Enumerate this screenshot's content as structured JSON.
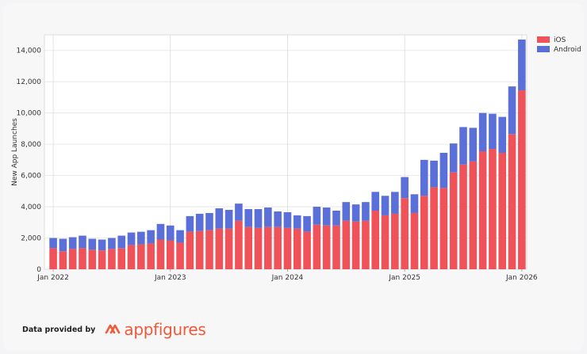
{
  "chart_data": {
    "type": "bar",
    "stacked": true,
    "ylabel": "New App Launches",
    "xlabel": "",
    "ylim": [
      0,
      15000
    ],
    "yticks": [
      0,
      2000,
      4000,
      6000,
      8000,
      10000,
      12000,
      14000
    ],
    "ytick_labels": [
      "0",
      "2,000",
      "4,000",
      "6,000",
      "8,000",
      "10,000",
      "12,000",
      "14,000"
    ],
    "xtick_labels": [
      "Jan 2022",
      "Jan 2023",
      "Jan 2024",
      "Jan 2025",
      "Jan 2026"
    ],
    "grid": true,
    "legend_position": "top-right",
    "categories": [
      "2022-01",
      "2022-02",
      "2022-03",
      "2022-04",
      "2022-05",
      "2022-06",
      "2022-07",
      "2022-08",
      "2022-09",
      "2022-10",
      "2022-11",
      "2022-12",
      "2023-01",
      "2023-02",
      "2023-03",
      "2023-04",
      "2023-05",
      "2023-06",
      "2023-07",
      "2023-08",
      "2023-09",
      "2023-10",
      "2023-11",
      "2023-12",
      "2024-01",
      "2024-02",
      "2024-03",
      "2024-04",
      "2024-05",
      "2024-06",
      "2024-07",
      "2024-08",
      "2024-09",
      "2024-10",
      "2024-11",
      "2024-12",
      "2025-01",
      "2025-02",
      "2025-03",
      "2025-04",
      "2025-05",
      "2025-06",
      "2025-07",
      "2025-08",
      "2025-09",
      "2025-10",
      "2025-11",
      "2025-12",
      "2026-01"
    ],
    "series": [
      {
        "name": "iOS",
        "color": "#ef5258",
        "values": [
          1350,
          1150,
          1300,
          1350,
          1250,
          1200,
          1300,
          1350,
          1550,
          1600,
          1650,
          1900,
          1850,
          1700,
          2400,
          2450,
          2500,
          2600,
          2600,
          3100,
          2700,
          2650,
          2700,
          2700,
          2650,
          2600,
          2400,
          2850,
          2800,
          2800,
          3100,
          3050,
          3100,
          3750,
          3450,
          3550,
          4550,
          3600,
          4700,
          5250,
          5200,
          6200,
          6700,
          6900,
          7550,
          7700,
          7450,
          8650,
          11450
        ]
      },
      {
        "name": "Android",
        "color": "#5b6fd8",
        "values": [
          650,
          800,
          750,
          800,
          700,
          700,
          700,
          800,
          800,
          800,
          850,
          1000,
          950,
          800,
          1000,
          1100,
          1100,
          1300,
          1200,
          1100,
          1150,
          1200,
          1250,
          1000,
          1000,
          850,
          1000,
          1150,
          1150,
          950,
          1200,
          1100,
          1200,
          1200,
          1250,
          1400,
          1350,
          1200,
          2300,
          1700,
          2250,
          1850,
          2400,
          2150,
          2450,
          2250,
          2300,
          3050,
          3250
        ]
      }
    ]
  },
  "footer": {
    "text": "Data provided by",
    "brand": "appfigures"
  }
}
